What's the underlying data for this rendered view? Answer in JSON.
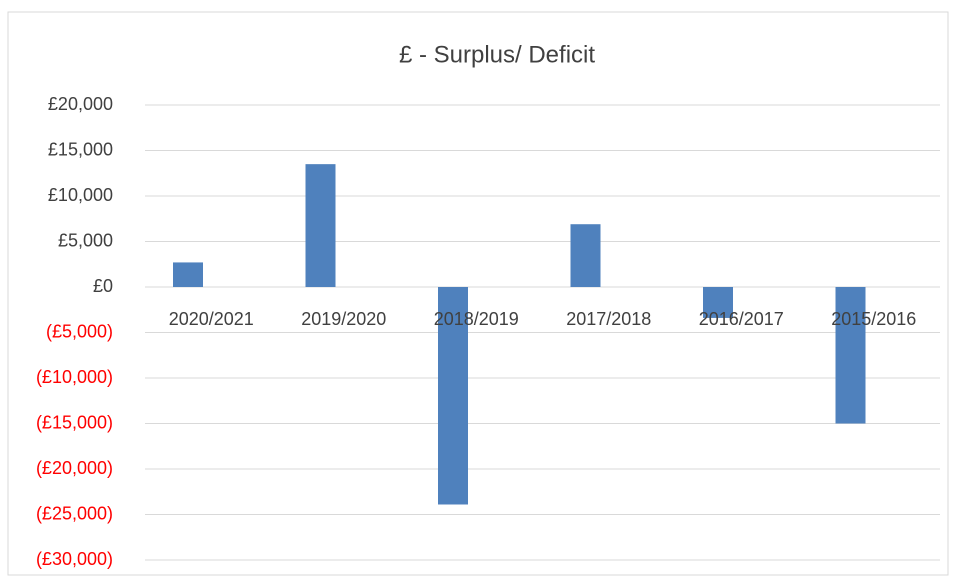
{
  "chart_data": {
    "type": "bar",
    "title": "£ - Surplus/ Deficit",
    "categories": [
      "2020/2021",
      "2019/2020",
      "2018/2019",
      "2017/2018",
      "2016/2017",
      "2015/2016"
    ],
    "values": [
      2700,
      13500,
      -23900,
      6900,
      -3400,
      -15000
    ],
    "color": "#4f81bd",
    "negative_tick_color": "#ff0000",
    "ylim": [
      -30000,
      20000
    ],
    "yticks": [
      {
        "value": -30000,
        "label": "(£30,000)"
      },
      {
        "value": -25000,
        "label": "(£25,000)"
      },
      {
        "value": -20000,
        "label": "(£20,000)"
      },
      {
        "value": -15000,
        "label": "(£15,000)"
      },
      {
        "value": -10000,
        "label": "(£10,000)"
      },
      {
        "value": -5000,
        "label": "(£5,000)"
      },
      {
        "value": 0,
        "label": "£0"
      },
      {
        "value": 5000,
        "label": "£5,000"
      },
      {
        "value": 10000,
        "label": "£10,000"
      },
      {
        "value": 15000,
        "label": "£15,000"
      },
      {
        "value": 20000,
        "label": "£20,000"
      }
    ],
    "grid": true
  }
}
